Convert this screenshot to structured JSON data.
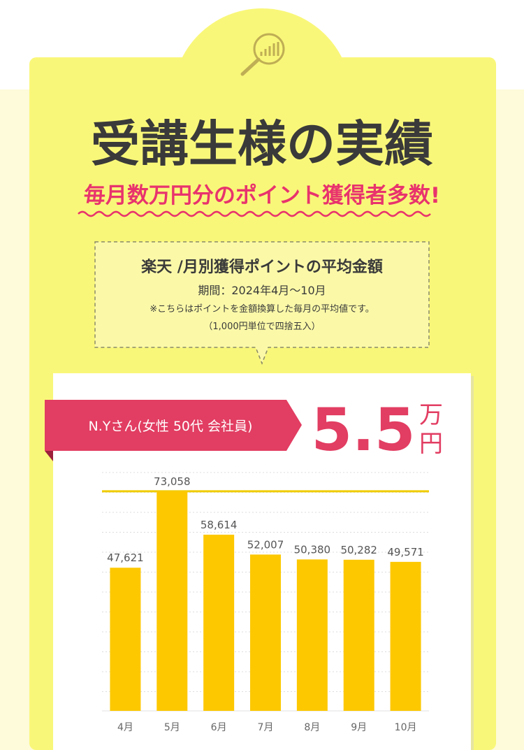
{
  "header": {
    "title": "受講生様の実績",
    "subtitle": "毎月数万円分のポイント獲得者多数!"
  },
  "info": {
    "heading": "楽天 /月別獲得ポイントの平均金額",
    "period": "期間：2024年4月～10月",
    "note": "※こちらはポイントを金額換算した毎月の平均値です。",
    "note2": "（1,000円単位で四捨五入）"
  },
  "profile": {
    "name": "N.Yさん(女性 50代 会社員)",
    "amount": "5.5",
    "unit1": "万",
    "unit2": "円"
  },
  "chart_data": {
    "type": "bar",
    "categories": [
      "4月",
      "5月",
      "6月",
      "7月",
      "8月",
      "9月",
      "10月"
    ],
    "values": [
      47621,
      73058,
      58614,
      52007,
      50380,
      50282,
      49571
    ],
    "value_labels": [
      "47,621",
      "73,058",
      "58,614",
      "52,007",
      "50,380",
      "50,282",
      "49,571"
    ],
    "color": "#fdc800",
    "ylim": [
      0,
      80000
    ]
  }
}
